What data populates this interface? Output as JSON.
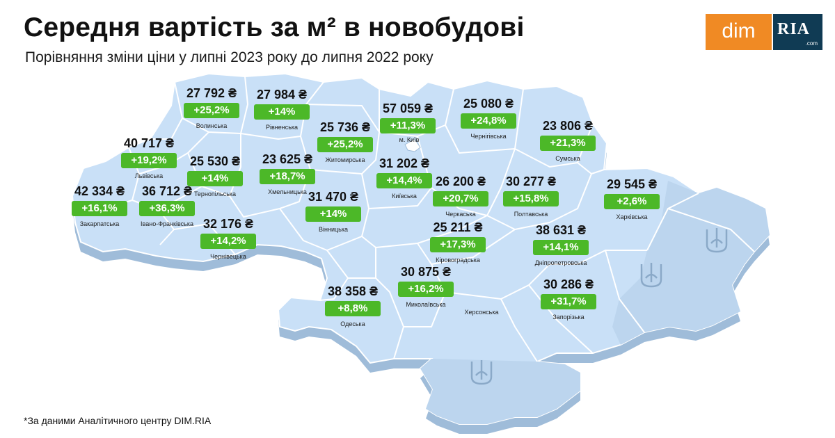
{
  "header": {
    "title": "Середня вартість за м² в новобудові",
    "subtitle": "Порівняння зміни ціни у липні 2023 року до липня 2022 року"
  },
  "logo": {
    "left_text": "dim",
    "right_text": "RIA",
    "right_sub": ".com"
  },
  "colors": {
    "map_fill": "#c9e0f7",
    "map_side": "#9fbcd9",
    "border": "#ffffff",
    "badge": "#4cb828",
    "logo_orange": "#f08a24",
    "logo_navy": "#103b54"
  },
  "regions": [
    {
      "name": "Волинська",
      "price": "27 792 ₴",
      "change": "+25,2%"
    },
    {
      "name": "Рівненська",
      "price": "27 984 ₴",
      "change": "+14%"
    },
    {
      "name": "Житомирська",
      "price": "25 736 ₴",
      "change": "+25,2%"
    },
    {
      "name": "м. Київ",
      "price": "57 059 ₴",
      "change": "+11,3%"
    },
    {
      "name": "Чернігівська",
      "price": "25 080 ₴",
      "change": "+24,8%"
    },
    {
      "name": "Сумська",
      "price": "23 806 ₴",
      "change": "+21,3%"
    },
    {
      "name": "Львівська",
      "price": "40 717 ₴",
      "change": "+19,2%"
    },
    {
      "name": "Тернопільська",
      "price": "25 530 ₴",
      "change": "+14%"
    },
    {
      "name": "Хмельницька",
      "price": "23 625 ₴",
      "change": "+18,7%"
    },
    {
      "name": "Київська",
      "price": "31 202 ₴",
      "change": "+14,4%"
    },
    {
      "name": "Закарпатська",
      "price": "42 334 ₴",
      "change": "+16,1%"
    },
    {
      "name": "Івано-Франківська",
      "price": "36 712 ₴",
      "change": "+36,3%"
    },
    {
      "name": "Вінницька",
      "price": "31 470 ₴",
      "change": "+14%"
    },
    {
      "name": "Черкаська",
      "price": "26 200 ₴",
      "change": "+20,7%"
    },
    {
      "name": "Полтавська",
      "price": "30 277 ₴",
      "change": "+15,8%"
    },
    {
      "name": "Харківська",
      "price": "29 545 ₴",
      "change": "+2,6%"
    },
    {
      "name": "Чернівецька",
      "price": "32 176 ₴",
      "change": "+14,2%"
    },
    {
      "name": "Кіровоградська",
      "price": "25 211 ₴",
      "change": "+17,3%"
    },
    {
      "name": "Дніпропетровська",
      "price": "38 631 ₴",
      "change": "+14,1%"
    },
    {
      "name": "Миколаївська",
      "price": "30 875 ₴",
      "change": "+16,2%"
    },
    {
      "name": "Одеська",
      "price": "38 358 ₴",
      "change": "+8,8%"
    },
    {
      "name": "Запорізька",
      "price": "30 286 ₴",
      "change": "+31,7%"
    }
  ],
  "unlabeled_regions": [
    "Херсонська"
  ],
  "footnote": "*За даними Аналітичного центру DIM.RIA"
}
